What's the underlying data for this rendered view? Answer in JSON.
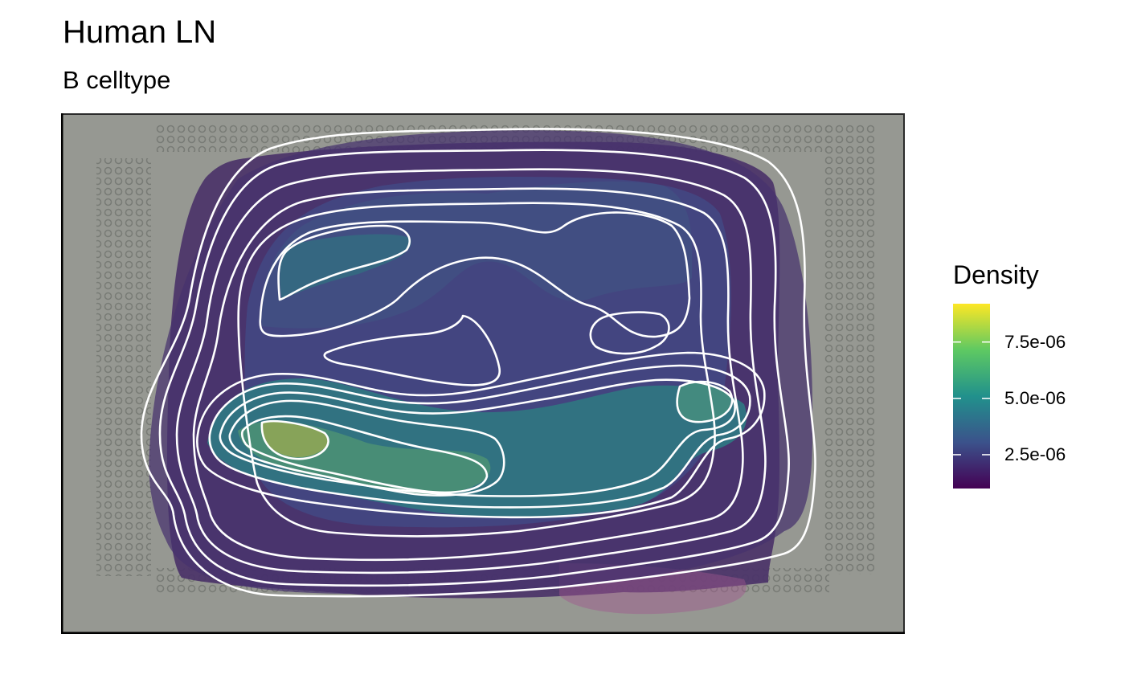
{
  "chart_data": {
    "type": "contour",
    "title": "Human LN",
    "subtitle": "B celltype",
    "legend": {
      "title": "Density",
      "position": "right",
      "colormap": "viridis",
      "range": [
        1e-06,
        9.2e-06
      ],
      "ticks": [
        {
          "value": 2.5e-06,
          "label": "2.5e-06"
        },
        {
          "value": 5e-06,
          "label": "5.0e-06"
        },
        {
          "value": 7.5e-06,
          "label": "7.5e-06"
        }
      ],
      "colors": [
        "#440154",
        "#3b528b",
        "#21918c",
        "#5ec962",
        "#fde725"
      ]
    },
    "contour_levels": [
      1e-06,
      1.7e-06,
      2.3e-06,
      2.9e-06,
      3.5e-06,
      4.5e-06,
      5.5e-06,
      6.5e-06,
      7.5e-06,
      8.6e-06
    ],
    "background": "H&E tissue image",
    "contour_line_color": "#ffffff",
    "axes": {
      "grid": false,
      "ticks": false
    }
  }
}
